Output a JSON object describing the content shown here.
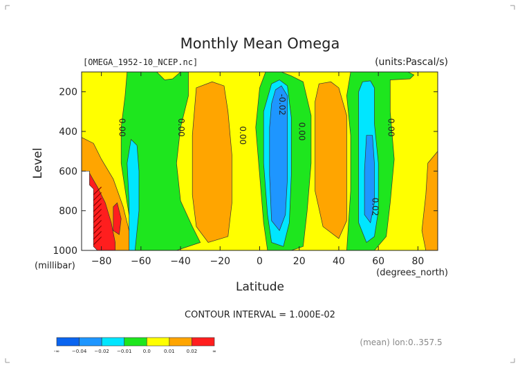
{
  "chart_data": {
    "type": "heatmap",
    "title": "Monthly Mean Omega",
    "file_label": "[OMEGA_1952-10_NCEP.nc]",
    "units_label": "(units:Pascal/s)",
    "xlabel": "Latitude",
    "xunits": "(degrees_north)",
    "ylabel": "Level",
    "yunits": "(millibar)",
    "xlim": [
      -90,
      90
    ],
    "ylim": [
      1000,
      100
    ],
    "y_inverted": true,
    "x_ticks": [
      -80,
      -60,
      -40,
      -20,
      0,
      20,
      40,
      60,
      80
    ],
    "y_ticks": [
      200,
      400,
      600,
      800,
      1000
    ],
    "contour_interval_text": "CONTOUR INTERVAL = 1.000E-02",
    "mean_text": "(mean) lon:0..357.5",
    "colorbar": {
      "labels": [
        "-∞",
        "−0.04",
        "−0.02",
        "−0.01",
        "0.0",
        "0.01",
        "0.02",
        "∞"
      ],
      "colors": [
        "#0a64f0",
        "#1e96ff",
        "#00e6ff",
        "#1ee61e",
        "#ffff00",
        "#ffa500",
        "#ff1e1e"
      ]
    },
    "contour_labels": [
      {
        "text": "0.00",
        "lat": -71,
        "p": 380
      },
      {
        "text": "0.00",
        "lat": -41,
        "p": 380
      },
      {
        "text": "0.00",
        "lat": -10,
        "p": 420
      },
      {
        "text": "-0.02",
        "lat": 10,
        "p": 265
      },
      {
        "text": "0.00",
        "lat": 20,
        "p": 400
      },
      {
        "text": "0.00",
        "lat": 65,
        "p": 380
      },
      {
        "text": "0.02",
        "lat": 57,
        "p": 780
      }
    ],
    "regions": [
      {
        "level": "yellow",
        "pts": [
          [
            -90,
            100
          ],
          [
            90,
            100
          ],
          [
            90,
            1000
          ],
          [
            -90,
            1000
          ]
        ]
      },
      {
        "level": "green",
        "pts": [
          [
            -67,
            100
          ],
          [
            -52,
            100
          ],
          [
            -48,
            140
          ],
          [
            -44,
            135
          ],
          [
            -40,
            100
          ],
          [
            -36,
            100
          ],
          [
            -36,
            220
          ],
          [
            -40,
            380
          ],
          [
            -42,
            560
          ],
          [
            -40,
            750
          ],
          [
            -34,
            880
          ],
          [
            -30,
            960
          ],
          [
            -42,
            1000
          ],
          [
            -63,
            1000
          ],
          [
            -67,
            760
          ],
          [
            -70,
            560
          ],
          [
            -70,
            380
          ],
          [
            -68,
            220
          ]
        ]
      },
      {
        "level": "green",
        "pts": [
          [
            3,
            100
          ],
          [
            11,
            100
          ],
          [
            16,
            120
          ],
          [
            22,
            150
          ],
          [
            26,
            320
          ],
          [
            26,
            560
          ],
          [
            24,
            800
          ],
          [
            22,
            980
          ],
          [
            16,
            1000
          ],
          [
            4,
            1000
          ],
          [
            2,
            860
          ],
          [
            0,
            620
          ],
          [
            -2,
            380
          ],
          [
            0,
            180
          ]
        ]
      },
      {
        "level": "green",
        "pts": [
          [
            46,
            100
          ],
          [
            75,
            100
          ],
          [
            78,
            115
          ],
          [
            76,
            135
          ],
          [
            66,
            140
          ],
          [
            66,
            300
          ],
          [
            68,
            540
          ],
          [
            66,
            760
          ],
          [
            64,
            930
          ],
          [
            58,
            1000
          ],
          [
            44,
            1000
          ],
          [
            46,
            700
          ],
          [
            46,
            420
          ],
          [
            44,
            220
          ]
        ]
      },
      {
        "level": "orange",
        "pts": [
          [
            -32,
            180
          ],
          [
            -24,
            150
          ],
          [
            -18,
            170
          ],
          [
            -16,
            300
          ],
          [
            -14,
            520
          ],
          [
            -14,
            760
          ],
          [
            -16,
            930
          ],
          [
            -26,
            960
          ],
          [
            -32,
            880
          ],
          [
            -34,
            720
          ],
          [
            -34,
            420
          ]
        ]
      },
      {
        "level": "orange",
        "pts": [
          [
            30,
            160
          ],
          [
            36,
            150
          ],
          [
            40,
            180
          ],
          [
            44,
            320
          ],
          [
            44,
            620
          ],
          [
            44,
            850
          ],
          [
            40,
            940
          ],
          [
            32,
            880
          ],
          [
            28,
            700
          ],
          [
            28,
            420
          ],
          [
            28,
            250
          ]
        ]
      },
      {
        "level": "orange",
        "pts": [
          [
            -90,
            430
          ],
          [
            -84,
            460
          ],
          [
            -80,
            540
          ],
          [
            -74,
            640
          ],
          [
            -69,
            780
          ],
          [
            -66,
            900
          ],
          [
            -64,
            1000
          ],
          [
            -90,
            1000
          ]
        ]
      },
      {
        "level": "orange",
        "pts": [
          [
            85,
            560
          ],
          [
            90,
            500
          ],
          [
            90,
            1000
          ],
          [
            84,
            1000
          ],
          [
            82,
            900
          ],
          [
            84,
            720
          ]
        ]
      },
      {
        "level": "cyan",
        "pts": [
          [
            6,
            160
          ],
          [
            10,
            140
          ],
          [
            14,
            170
          ],
          [
            16,
            330
          ],
          [
            16,
            620
          ],
          [
            15,
            860
          ],
          [
            12,
            980
          ],
          [
            6,
            960
          ],
          [
            4,
            820
          ],
          [
            2,
            560
          ],
          [
            2,
            300
          ]
        ]
      },
      {
        "level": "cyan",
        "pts": [
          [
            52,
            150
          ],
          [
            56,
            145
          ],
          [
            58,
            180
          ],
          [
            58,
            360
          ],
          [
            60,
            560
          ],
          [
            60,
            800
          ],
          [
            58,
            930
          ],
          [
            54,
            960
          ],
          [
            50,
            860
          ],
          [
            50,
            600
          ],
          [
            50,
            360
          ],
          [
            50,
            200
          ]
        ]
      },
      {
        "level": "cyan",
        "pts": [
          [
            -65,
            440
          ],
          [
            -62,
            470
          ],
          [
            -61,
            600
          ],
          [
            -61,
            800
          ],
          [
            -63,
            1000
          ],
          [
            -66,
            1000
          ],
          [
            -66,
            760
          ],
          [
            -67,
            560
          ]
        ]
      },
      {
        "level": "blue",
        "pts": [
          [
            8,
            190
          ],
          [
            11,
            170
          ],
          [
            14,
            220
          ],
          [
            14,
            430
          ],
          [
            14,
            640
          ],
          [
            13,
            820
          ],
          [
            10,
            900
          ],
          [
            6,
            850
          ],
          [
            5,
            620
          ],
          [
            5,
            380
          ],
          [
            6,
            260
          ]
        ]
      },
      {
        "level": "blue",
        "pts": [
          [
            54,
            420
          ],
          [
            57,
            420
          ],
          [
            58,
            560
          ],
          [
            58,
            760
          ],
          [
            56,
            860
          ],
          [
            53,
            820
          ],
          [
            53,
            600
          ]
        ]
      },
      {
        "level": "red",
        "pts": [
          [
            -90,
            600
          ],
          [
            -86,
            610
          ],
          [
            -82,
            680
          ],
          [
            -78,
            760
          ],
          [
            -75,
            860
          ],
          [
            -73,
            960
          ],
          [
            -73,
            1000
          ],
          [
            -90,
            1000
          ]
        ]
      },
      {
        "level": "red",
        "pts": [
          [
            -74,
            780
          ],
          [
            -72,
            760
          ],
          [
            -70,
            840
          ],
          [
            -71,
            920
          ],
          [
            -74,
            900
          ]
        ]
      }
    ],
    "missing_region": {
      "pts": [
        [
          -90,
          600
        ],
        [
          -86,
          600
        ],
        [
          -86,
          670
        ],
        [
          -84,
          690
        ],
        [
          -84,
          980
        ],
        [
          -82,
          1000
        ],
        [
          -90,
          1000
        ]
      ]
    }
  },
  "colors": {
    "yellow": "#ffff00",
    "green": "#1ee61e",
    "orange": "#ffa500",
    "cyan": "#00e6ff",
    "blue": "#1e96ff",
    "red": "#ff1e1e",
    "text": "#222222"
  }
}
